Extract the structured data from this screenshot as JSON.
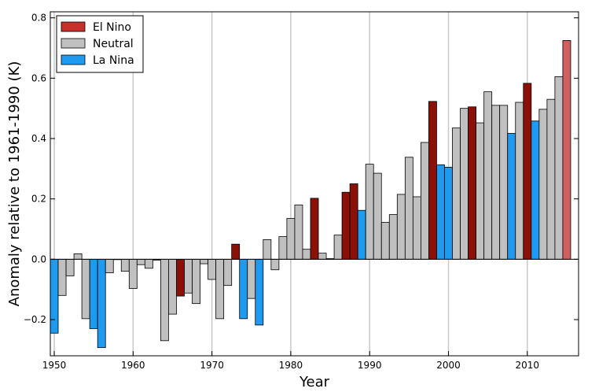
{
  "chart_data": {
    "type": "bar",
    "xlabel": "Year",
    "ylabel": "Anomaly relative to 1961-1990 (K)",
    "xlim": [
      1949.5,
      2016.5
    ],
    "ylim": [
      -0.32,
      0.82
    ],
    "x_ticks": [
      1950,
      1960,
      1970,
      1980,
      1990,
      2000,
      2010
    ],
    "y_ticks": [
      -0.2,
      0.0,
      0.2,
      0.4,
      0.6,
      0.8
    ],
    "y_tick_labels": [
      "−0.2",
      "0.0",
      "0.2",
      "0.4",
      "0.6",
      "0.8"
    ],
    "grid": "vertical",
    "legend": {
      "placement": "top-left",
      "entries": [
        {
          "key": "el_nino",
          "label": "El Nino",
          "color": "#c8302c"
        },
        {
          "key": "neutral",
          "label": "Neutral",
          "color": "#c0c0c0"
        },
        {
          "key": "la_nina",
          "label": "La Nina",
          "color": "#1e9bf0"
        }
      ]
    },
    "colors": {
      "el_nino": "#8b1108",
      "neutral": "#c0c0c0",
      "la_nina": "#1e9bf0",
      "highlight": "#d06060"
    },
    "bars": [
      {
        "year": 1950,
        "value": -0.245,
        "cat": "la_nina"
      },
      {
        "year": 1951,
        "value": -0.12,
        "cat": "neutral"
      },
      {
        "year": 1952,
        "value": -0.055,
        "cat": "neutral"
      },
      {
        "year": 1953,
        "value": 0.018,
        "cat": "neutral"
      },
      {
        "year": 1954,
        "value": -0.197,
        "cat": "neutral"
      },
      {
        "year": 1955,
        "value": -0.23,
        "cat": "la_nina"
      },
      {
        "year": 1956,
        "value": -0.293,
        "cat": "la_nina"
      },
      {
        "year": 1957,
        "value": -0.045,
        "cat": "neutral"
      },
      {
        "year": 1958,
        "value": 0.0,
        "cat": "neutral"
      },
      {
        "year": 1959,
        "value": -0.04,
        "cat": "neutral"
      },
      {
        "year": 1960,
        "value": -0.097,
        "cat": "neutral"
      },
      {
        "year": 1961,
        "value": -0.018,
        "cat": "neutral"
      },
      {
        "year": 1962,
        "value": -0.03,
        "cat": "neutral"
      },
      {
        "year": 1963,
        "value": -0.003,
        "cat": "neutral"
      },
      {
        "year": 1964,
        "value": -0.27,
        "cat": "neutral"
      },
      {
        "year": 1965,
        "value": -0.182,
        "cat": "neutral"
      },
      {
        "year": 1966,
        "value": -0.122,
        "cat": "el_nino"
      },
      {
        "year": 1967,
        "value": -0.112,
        "cat": "neutral"
      },
      {
        "year": 1968,
        "value": -0.147,
        "cat": "neutral"
      },
      {
        "year": 1969,
        "value": -0.015,
        "cat": "neutral"
      },
      {
        "year": 1970,
        "value": -0.067,
        "cat": "neutral"
      },
      {
        "year": 1971,
        "value": -0.197,
        "cat": "neutral"
      },
      {
        "year": 1972,
        "value": -0.087,
        "cat": "neutral"
      },
      {
        "year": 1973,
        "value": 0.05,
        "cat": "el_nino"
      },
      {
        "year": 1974,
        "value": -0.197,
        "cat": "la_nina"
      },
      {
        "year": 1975,
        "value": -0.13,
        "cat": "neutral"
      },
      {
        "year": 1976,
        "value": -0.218,
        "cat": "la_nina"
      },
      {
        "year": 1977,
        "value": 0.065,
        "cat": "neutral"
      },
      {
        "year": 1978,
        "value": -0.035,
        "cat": "neutral"
      },
      {
        "year": 1979,
        "value": 0.075,
        "cat": "neutral"
      },
      {
        "year": 1980,
        "value": 0.135,
        "cat": "neutral"
      },
      {
        "year": 1981,
        "value": 0.18,
        "cat": "neutral"
      },
      {
        "year": 1982,
        "value": 0.033,
        "cat": "neutral"
      },
      {
        "year": 1983,
        "value": 0.202,
        "cat": "el_nino"
      },
      {
        "year": 1984,
        "value": 0.02,
        "cat": "neutral"
      },
      {
        "year": 1985,
        "value": 0.002,
        "cat": "neutral"
      },
      {
        "year": 1986,
        "value": 0.08,
        "cat": "neutral"
      },
      {
        "year": 1987,
        "value": 0.222,
        "cat": "el_nino"
      },
      {
        "year": 1988,
        "value": 0.25,
        "cat": "el_nino"
      },
      {
        "year": 1989,
        "value": 0.162,
        "cat": "la_nina"
      },
      {
        "year": 1990,
        "value": 0.315,
        "cat": "neutral"
      },
      {
        "year": 1991,
        "value": 0.285,
        "cat": "neutral"
      },
      {
        "year": 1992,
        "value": 0.122,
        "cat": "neutral"
      },
      {
        "year": 1993,
        "value": 0.148,
        "cat": "neutral"
      },
      {
        "year": 1994,
        "value": 0.215,
        "cat": "neutral"
      },
      {
        "year": 1995,
        "value": 0.338,
        "cat": "neutral"
      },
      {
        "year": 1996,
        "value": 0.207,
        "cat": "neutral"
      },
      {
        "year": 1997,
        "value": 0.387,
        "cat": "neutral"
      },
      {
        "year": 1998,
        "value": 0.523,
        "cat": "el_nino"
      },
      {
        "year": 1999,
        "value": 0.313,
        "cat": "la_nina"
      },
      {
        "year": 2000,
        "value": 0.305,
        "cat": "la_nina"
      },
      {
        "year": 2001,
        "value": 0.435,
        "cat": "neutral"
      },
      {
        "year": 2002,
        "value": 0.5,
        "cat": "neutral"
      },
      {
        "year": 2003,
        "value": 0.505,
        "cat": "el_nino"
      },
      {
        "year": 2004,
        "value": 0.452,
        "cat": "neutral"
      },
      {
        "year": 2005,
        "value": 0.555,
        "cat": "neutral"
      },
      {
        "year": 2006,
        "value": 0.51,
        "cat": "neutral"
      },
      {
        "year": 2007,
        "value": 0.51,
        "cat": "neutral"
      },
      {
        "year": 2008,
        "value": 0.417,
        "cat": "la_nina"
      },
      {
        "year": 2009,
        "value": 0.52,
        "cat": "neutral"
      },
      {
        "year": 2010,
        "value": 0.583,
        "cat": "el_nino"
      },
      {
        "year": 2011,
        "value": 0.458,
        "cat": "la_nina"
      },
      {
        "year": 2012,
        "value": 0.497,
        "cat": "neutral"
      },
      {
        "year": 2013,
        "value": 0.53,
        "cat": "neutral"
      },
      {
        "year": 2014,
        "value": 0.605,
        "cat": "neutral"
      },
      {
        "year": 2015,
        "value": 0.725,
        "cat": "highlight"
      }
    ]
  }
}
